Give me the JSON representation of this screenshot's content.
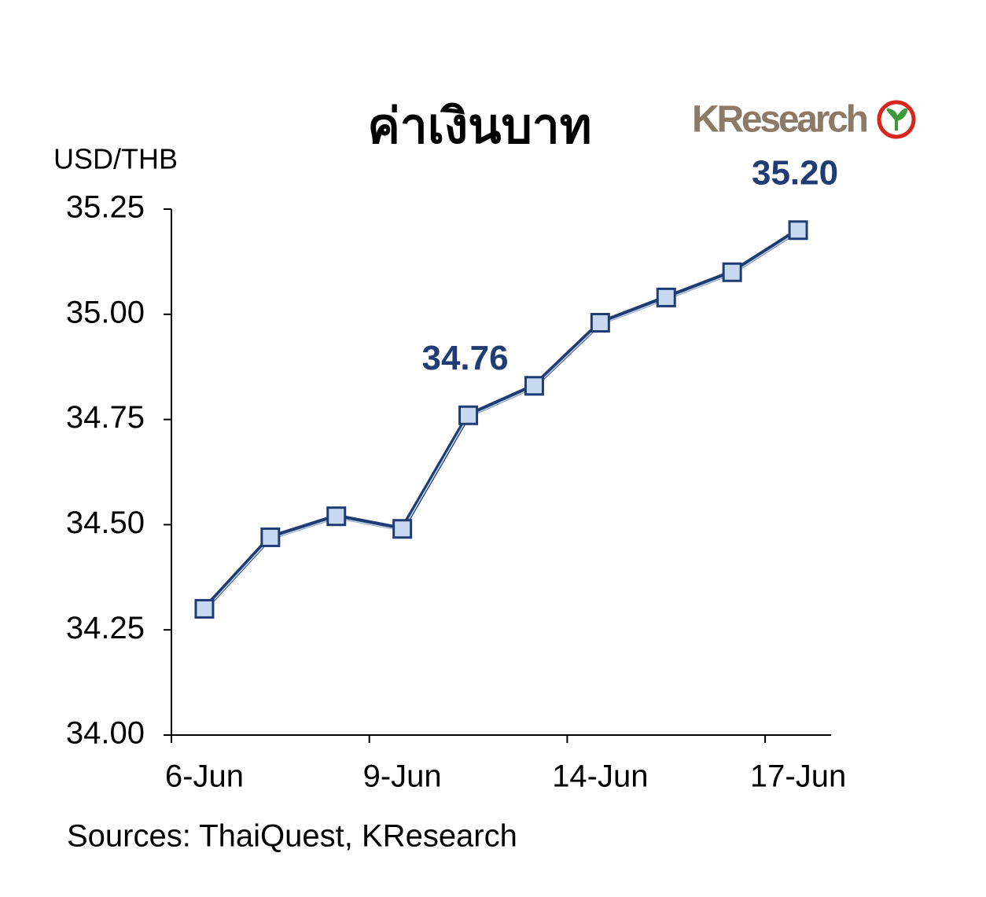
{
  "chart_data": {
    "type": "line",
    "title": "ค่าเงินบาท",
    "y_label": "USD/THB",
    "source": "Sources: ThaiQuest, KResearch",
    "logo": "KResearch",
    "categories": [
      "6-Jun",
      null,
      null,
      "9-Jun",
      null,
      null,
      "14-Jun",
      null,
      null,
      "17-Jun"
    ],
    "series": [
      {
        "name": "USD/THB",
        "color": "#1f3d74",
        "marker_color": "#c6d9f1",
        "values": [
          34.3,
          34.47,
          34.52,
          34.49,
          34.76,
          34.83,
          34.98,
          35.04,
          35.1,
          35.2
        ],
        "value_labels": [
          null,
          null,
          null,
          null,
          "34.76",
          null,
          null,
          null,
          null,
          "35.20"
        ]
      }
    ],
    "ylim": [
      34.0,
      35.25
    ],
    "yticks": [
      {
        "value": 34.0,
        "label": "34.00"
      },
      {
        "value": 34.25,
        "label": "34.25"
      },
      {
        "value": 34.5,
        "label": "34.50"
      },
      {
        "value": 34.75,
        "label": "34.75"
      },
      {
        "value": 35.0,
        "label": "35.00"
      },
      {
        "value": 35.25,
        "label": "35.25"
      }
    ],
    "xtick_every": 3,
    "grid": false
  }
}
